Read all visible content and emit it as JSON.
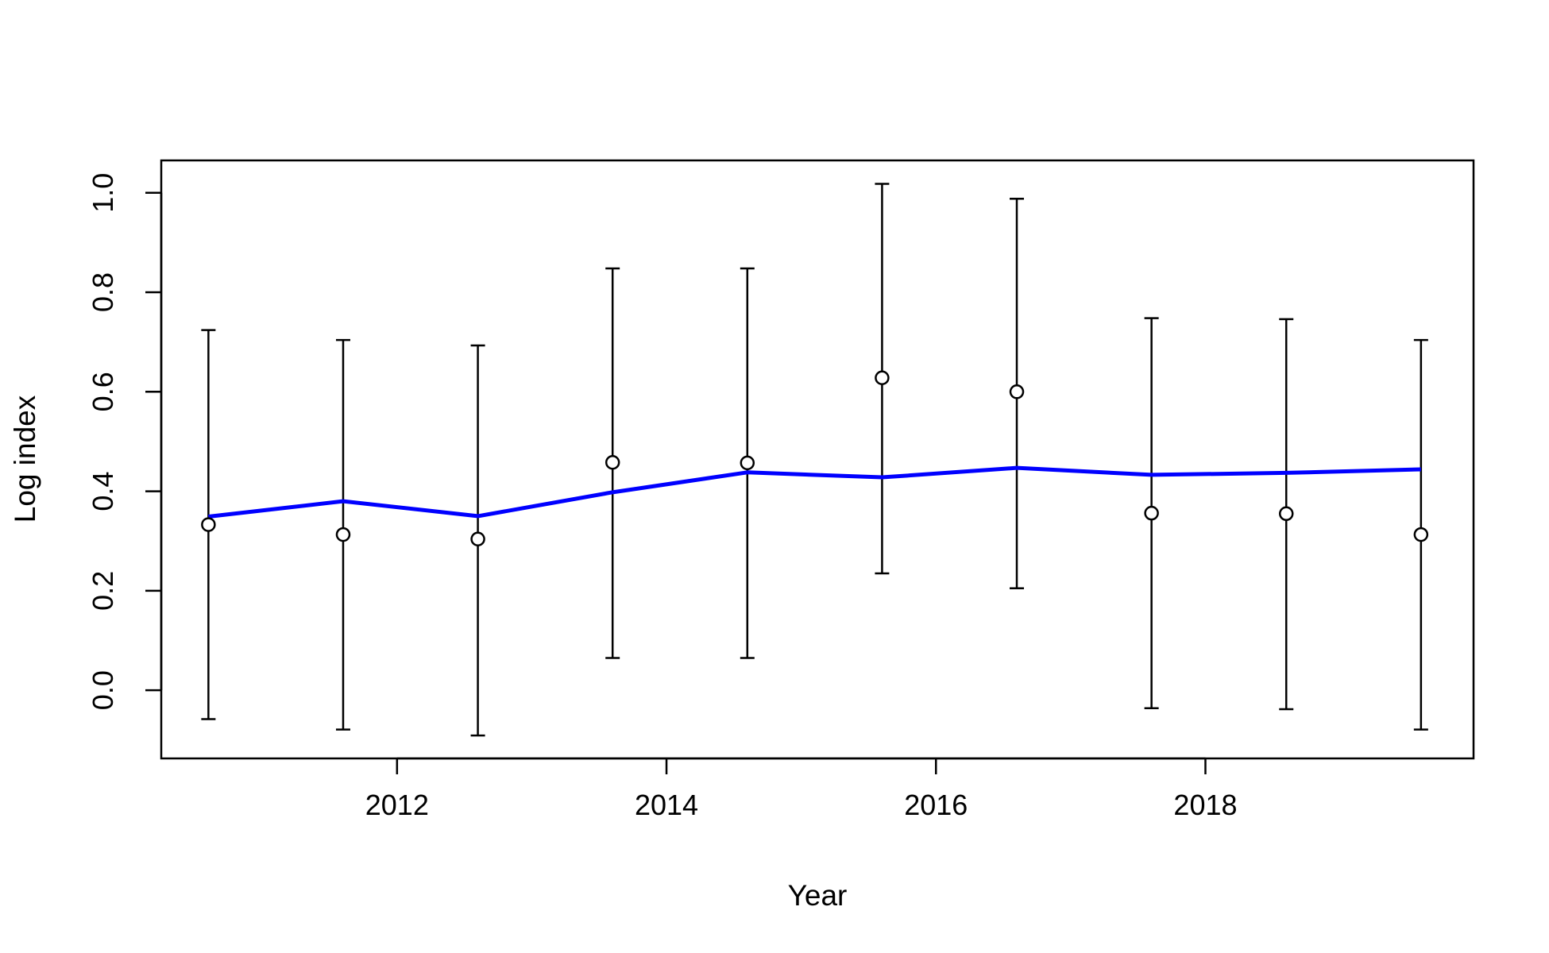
{
  "chart_data": {
    "type": "line",
    "title": "",
    "xlabel": "Year",
    "ylabel": "Log index",
    "xlim": [
      2010.25,
      2019.99
    ],
    "ylim": [
      -0.137,
      1.065
    ],
    "x_ticks": [
      2012,
      2014,
      2016,
      2018
    ],
    "x_tick_labels": [
      "2012",
      "2014",
      "2016",
      "2018"
    ],
    "y_ticks": [
      0.0,
      0.2,
      0.4,
      0.6,
      0.8,
      1.0
    ],
    "y_tick_labels": [
      "0.0",
      "0.2",
      "0.4",
      "0.6",
      "0.8",
      "1.0"
    ],
    "grid": false,
    "legend": "none",
    "x": [
      2010.6,
      2011.6,
      2012.6,
      2013.6,
      2014.6,
      2015.6,
      2016.6,
      2017.6,
      2018.6,
      2019.6
    ],
    "series": [
      {
        "type": "scatter-errorbar",
        "marker": "open-circle",
        "color": "#000000",
        "values": [
          0.333,
          0.313,
          0.304,
          0.458,
          0.457,
          0.628,
          0.6,
          0.356,
          0.355,
          0.313
        ],
        "lower": [
          -0.058,
          -0.079,
          -0.091,
          0.065,
          0.065,
          0.235,
          0.205,
          -0.036,
          -0.038,
          -0.079
        ],
        "upper": [
          0.724,
          0.704,
          0.693,
          0.848,
          0.848,
          1.018,
          0.988,
          0.748,
          0.746,
          0.704
        ]
      },
      {
        "type": "line",
        "color": "#0000ff",
        "values": [
          0.349,
          0.38,
          0.35,
          0.398,
          0.438,
          0.428,
          0.447,
          0.433,
          0.437,
          0.444
        ]
      }
    ]
  }
}
